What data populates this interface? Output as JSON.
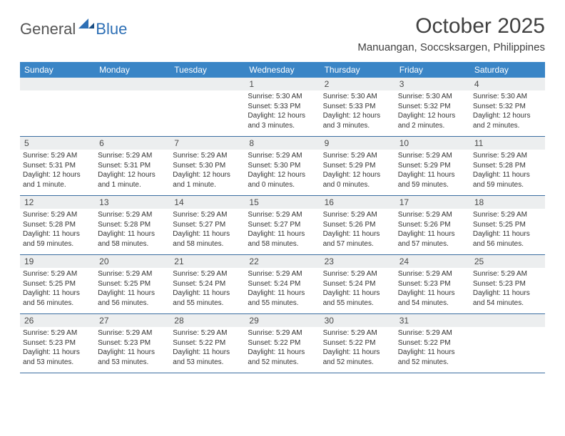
{
  "brand": {
    "text1": "General",
    "text2": "Blue",
    "color1": "#545454",
    "color2": "#2d6fb5"
  },
  "title": "October 2025",
  "location": "Manuangan, Soccsksargen, Philippines",
  "colors": {
    "header_bg": "#3a85c6",
    "daynum_bg": "#eceeef",
    "rule": "#3a6da0"
  },
  "day_names": [
    "Sunday",
    "Monday",
    "Tuesday",
    "Wednesday",
    "Thursday",
    "Friday",
    "Saturday"
  ],
  "weeks": [
    [
      null,
      null,
      null,
      {
        "n": "1",
        "sr": "Sunrise: 5:30 AM",
        "ss": "Sunset: 5:33 PM",
        "dl": "Daylight: 12 hours and 3 minutes."
      },
      {
        "n": "2",
        "sr": "Sunrise: 5:30 AM",
        "ss": "Sunset: 5:33 PM",
        "dl": "Daylight: 12 hours and 3 minutes."
      },
      {
        "n": "3",
        "sr": "Sunrise: 5:30 AM",
        "ss": "Sunset: 5:32 PM",
        "dl": "Daylight: 12 hours and 2 minutes."
      },
      {
        "n": "4",
        "sr": "Sunrise: 5:30 AM",
        "ss": "Sunset: 5:32 PM",
        "dl": "Daylight: 12 hours and 2 minutes."
      }
    ],
    [
      {
        "n": "5",
        "sr": "Sunrise: 5:29 AM",
        "ss": "Sunset: 5:31 PM",
        "dl": "Daylight: 12 hours and 1 minute."
      },
      {
        "n": "6",
        "sr": "Sunrise: 5:29 AM",
        "ss": "Sunset: 5:31 PM",
        "dl": "Daylight: 12 hours and 1 minute."
      },
      {
        "n": "7",
        "sr": "Sunrise: 5:29 AM",
        "ss": "Sunset: 5:30 PM",
        "dl": "Daylight: 12 hours and 1 minute."
      },
      {
        "n": "8",
        "sr": "Sunrise: 5:29 AM",
        "ss": "Sunset: 5:30 PM",
        "dl": "Daylight: 12 hours and 0 minutes."
      },
      {
        "n": "9",
        "sr": "Sunrise: 5:29 AM",
        "ss": "Sunset: 5:29 PM",
        "dl": "Daylight: 12 hours and 0 minutes."
      },
      {
        "n": "10",
        "sr": "Sunrise: 5:29 AM",
        "ss": "Sunset: 5:29 PM",
        "dl": "Daylight: 11 hours and 59 minutes."
      },
      {
        "n": "11",
        "sr": "Sunrise: 5:29 AM",
        "ss": "Sunset: 5:28 PM",
        "dl": "Daylight: 11 hours and 59 minutes."
      }
    ],
    [
      {
        "n": "12",
        "sr": "Sunrise: 5:29 AM",
        "ss": "Sunset: 5:28 PM",
        "dl": "Daylight: 11 hours and 59 minutes."
      },
      {
        "n": "13",
        "sr": "Sunrise: 5:29 AM",
        "ss": "Sunset: 5:28 PM",
        "dl": "Daylight: 11 hours and 58 minutes."
      },
      {
        "n": "14",
        "sr": "Sunrise: 5:29 AM",
        "ss": "Sunset: 5:27 PM",
        "dl": "Daylight: 11 hours and 58 minutes."
      },
      {
        "n": "15",
        "sr": "Sunrise: 5:29 AM",
        "ss": "Sunset: 5:27 PM",
        "dl": "Daylight: 11 hours and 58 minutes."
      },
      {
        "n": "16",
        "sr": "Sunrise: 5:29 AM",
        "ss": "Sunset: 5:26 PM",
        "dl": "Daylight: 11 hours and 57 minutes."
      },
      {
        "n": "17",
        "sr": "Sunrise: 5:29 AM",
        "ss": "Sunset: 5:26 PM",
        "dl": "Daylight: 11 hours and 57 minutes."
      },
      {
        "n": "18",
        "sr": "Sunrise: 5:29 AM",
        "ss": "Sunset: 5:25 PM",
        "dl": "Daylight: 11 hours and 56 minutes."
      }
    ],
    [
      {
        "n": "19",
        "sr": "Sunrise: 5:29 AM",
        "ss": "Sunset: 5:25 PM",
        "dl": "Daylight: 11 hours and 56 minutes."
      },
      {
        "n": "20",
        "sr": "Sunrise: 5:29 AM",
        "ss": "Sunset: 5:25 PM",
        "dl": "Daylight: 11 hours and 56 minutes."
      },
      {
        "n": "21",
        "sr": "Sunrise: 5:29 AM",
        "ss": "Sunset: 5:24 PM",
        "dl": "Daylight: 11 hours and 55 minutes."
      },
      {
        "n": "22",
        "sr": "Sunrise: 5:29 AM",
        "ss": "Sunset: 5:24 PM",
        "dl": "Daylight: 11 hours and 55 minutes."
      },
      {
        "n": "23",
        "sr": "Sunrise: 5:29 AM",
        "ss": "Sunset: 5:24 PM",
        "dl": "Daylight: 11 hours and 55 minutes."
      },
      {
        "n": "24",
        "sr": "Sunrise: 5:29 AM",
        "ss": "Sunset: 5:23 PM",
        "dl": "Daylight: 11 hours and 54 minutes."
      },
      {
        "n": "25",
        "sr": "Sunrise: 5:29 AM",
        "ss": "Sunset: 5:23 PM",
        "dl": "Daylight: 11 hours and 54 minutes."
      }
    ],
    [
      {
        "n": "26",
        "sr": "Sunrise: 5:29 AM",
        "ss": "Sunset: 5:23 PM",
        "dl": "Daylight: 11 hours and 53 minutes."
      },
      {
        "n": "27",
        "sr": "Sunrise: 5:29 AM",
        "ss": "Sunset: 5:23 PM",
        "dl": "Daylight: 11 hours and 53 minutes."
      },
      {
        "n": "28",
        "sr": "Sunrise: 5:29 AM",
        "ss": "Sunset: 5:22 PM",
        "dl": "Daylight: 11 hours and 53 minutes."
      },
      {
        "n": "29",
        "sr": "Sunrise: 5:29 AM",
        "ss": "Sunset: 5:22 PM",
        "dl": "Daylight: 11 hours and 52 minutes."
      },
      {
        "n": "30",
        "sr": "Sunrise: 5:29 AM",
        "ss": "Sunset: 5:22 PM",
        "dl": "Daylight: 11 hours and 52 minutes."
      },
      {
        "n": "31",
        "sr": "Sunrise: 5:29 AM",
        "ss": "Sunset: 5:22 PM",
        "dl": "Daylight: 11 hours and 52 minutes."
      },
      null
    ]
  ]
}
